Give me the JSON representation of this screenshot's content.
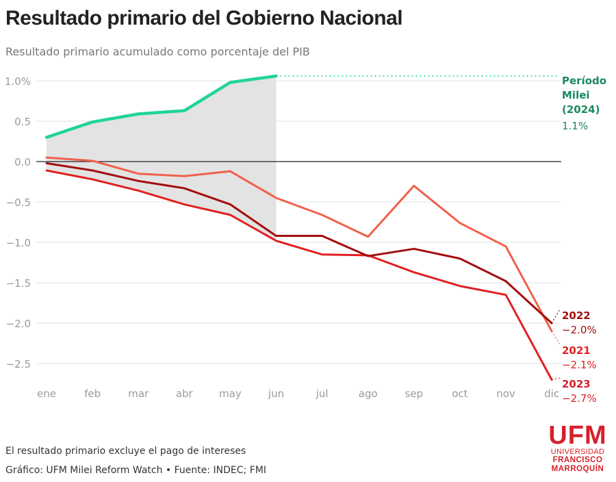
{
  "header": {
    "title": "Resultado primario del Gobierno Nacional",
    "subtitle": "Resultado primario acumulado como porcentaje del PIB"
  },
  "footer": {
    "note": "El resultado primario excluye el pago de intereses",
    "source": "Gráfico: UFM Milei Reform Watch • Fuente: INDEC; FMI"
  },
  "logo": {
    "acronym": "UFM",
    "line1": "UNIVERSIDAD",
    "line2": "FRANCISCO",
    "line3": "MARROQUÍN",
    "color": "#d6202b"
  },
  "chart_data": {
    "type": "line",
    "title": "Resultado primario del Gobierno Nacional",
    "subtitle": "Resultado primario acumulado como porcentaje del PIB",
    "xlabel": "",
    "ylabel": "",
    "categories": [
      "ene",
      "feb",
      "mar",
      "abr",
      "may",
      "jun",
      "jul",
      "ago",
      "sep",
      "oct",
      "nov",
      "dic"
    ],
    "ylim": [
      -2.75,
      1.1
    ],
    "yticks": [
      1.0,
      0.5,
      0.0,
      -0.5,
      -1.0,
      -1.5,
      -2.0,
      -2.5
    ],
    "ytick_labels": [
      "1.0%",
      "0.5",
      "0.0",
      "−0.5",
      "−1.0",
      "−1.5",
      "−2.0",
      "−2.5"
    ],
    "grid": true,
    "shaded_region": {
      "from": "ene",
      "to": "jun",
      "between": "2024 and lowest series",
      "color": "#e3e3e3"
    },
    "series": [
      {
        "name": "2021",
        "color": "#f0604a",
        "label_color": "#e0211f",
        "values": [
          0.05,
          0.01,
          -0.15,
          -0.18,
          -0.12,
          -0.45,
          -0.66,
          -0.93,
          -0.3,
          -0.76,
          -1.05,
          -2.1
        ],
        "end_label": "2021",
        "end_value_label": "−2.1%"
      },
      {
        "name": "2022",
        "color": "#a30d0d",
        "label_color": "#a30d0d",
        "values": [
          -0.02,
          -0.11,
          -0.24,
          -0.33,
          -0.53,
          -0.92,
          -0.92,
          -1.17,
          -1.08,
          -1.2,
          -1.48,
          -2.0
        ],
        "end_label": "2022",
        "end_value_label": "−2.0%"
      },
      {
        "name": "2023",
        "color": "#e0211f",
        "label_color": "#d6202b",
        "values": [
          -0.11,
          -0.22,
          -0.36,
          -0.53,
          -0.66,
          -0.98,
          -1.15,
          -1.16,
          -1.37,
          -1.54,
          -1.65,
          -2.7
        ],
        "end_label": "2023",
        "end_value_label": "−2.7%"
      },
      {
        "name": "Período Milei (2024)",
        "color": "#21d39b",
        "label_color": "#1a8a5e",
        "values": [
          0.3,
          0.49,
          0.59,
          0.63,
          0.98,
          1.06,
          null,
          null,
          null,
          null,
          null,
          null
        ],
        "end_label_lines": [
          "Período",
          "Milei",
          "(2024)"
        ],
        "end_value_label": "1.1%"
      }
    ]
  }
}
